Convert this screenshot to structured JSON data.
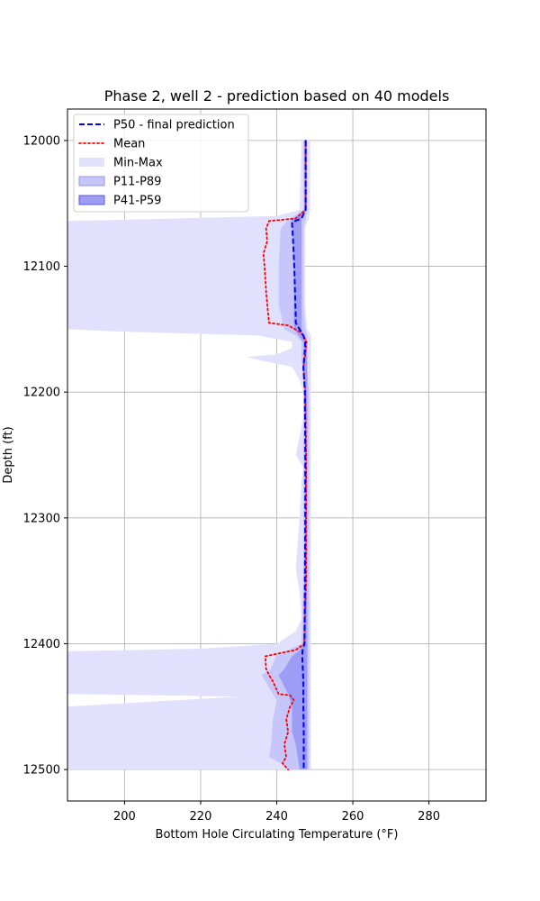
{
  "chart_data": {
    "type": "line",
    "title": "Phase 2, well 2 - prediction based on 40 models",
    "xlabel": "Bottom Hole Circulating Temperature (°F)",
    "ylabel": "Depth (ft)",
    "xlim": [
      185,
      295
    ],
    "ylim": [
      12525,
      11975
    ],
    "y_inverted": true,
    "grid": true,
    "legend_position": "upper-left",
    "xticks": [
      200,
      220,
      240,
      260,
      280
    ],
    "yticks": [
      12000,
      12100,
      12200,
      12300,
      12400,
      12500
    ],
    "xtick_labels": [
      "200",
      "220",
      "240",
      "260",
      "280"
    ],
    "ytick_labels": [
      "12000",
      "12100",
      "12200",
      "12300",
      "12400",
      "12500"
    ],
    "colors": {
      "p50": "#0000ff",
      "mean": "#ff0000",
      "minmax_fill": "#e1e1fd",
      "p11p89_fill": "#c6c6fa",
      "p41p59_fill": "#9d9df6",
      "legend_p11_edge": "#9696e8",
      "legend_p41_edge": "#5c5cd6"
    },
    "legend": [
      {
        "label": "P50 - final prediction",
        "style": "dashed-line",
        "color": "#0000ff"
      },
      {
        "label": "Mean",
        "style": "dotted-line",
        "color": "#ff0000"
      },
      {
        "label": "Min-Max",
        "style": "patch",
        "color": "#e1e1fd"
      },
      {
        "label": "P11-P89",
        "style": "patch",
        "color": "#c6c6fa"
      },
      {
        "label": "P41-P59",
        "style": "patch",
        "color": "#9d9df6"
      }
    ],
    "series": [
      {
        "name": "Min-Max",
        "kind": "band",
        "depth": [
          12000,
          12055,
          12060,
          12063,
          12064,
          12070,
          12100,
          12130,
          12150,
          12152,
          12155,
          12160,
          12165,
          12170,
          12172,
          12175,
          12180,
          12190,
          12200,
          12220,
          12250,
          12260,
          12270,
          12300,
          12320,
          12340,
          12360,
          12380,
          12390,
          12400,
          12404,
          12406,
          12410,
          12420,
          12440,
          12441,
          12442,
          12450,
          12451,
          12453,
          12455,
          12456,
          12460,
          12463,
          12465,
          12466,
          12468,
          12470,
          12472,
          12474,
          12476,
          12480,
          12490,
          12500
        ],
        "min": [
          246.5,
          246.0,
          240.0,
          200.0,
          185.0,
          185.0,
          185.0,
          185.0,
          185.0,
          200.0,
          235.0,
          244.0,
          244.0,
          240.0,
          232.0,
          236.0,
          244.0,
          246.0,
          247.0,
          247.0,
          245.0,
          247.0,
          246.5,
          246.0,
          245.5,
          245.0,
          246.0,
          246.5,
          245.0,
          240.0,
          220.0,
          185.0,
          185.0,
          185.0,
          185.0,
          209.0,
          230.0,
          185.0,
          185.0,
          185.0,
          185.0,
          185.0,
          185.0,
          185.0,
          185.0,
          185.0,
          185.0,
          185.0,
          185.0,
          185.0,
          185.0,
          185.0,
          185.0,
          185.0
        ],
        "max": [
          248.8,
          248.8,
          248.5,
          248.5,
          248.0,
          247.5,
          247.5,
          247.5,
          248.0,
          248.5,
          249.0,
          249.0,
          249.0,
          249.0,
          249.0,
          249.0,
          249.0,
          249.0,
          249.0,
          249.0,
          249.0,
          249.0,
          249.0,
          249.0,
          249.0,
          249.0,
          249.0,
          249.0,
          249.0,
          249.0,
          249.0,
          249.0,
          249.0,
          249.0,
          249.0,
          249.0,
          249.0,
          249.0,
          249.0,
          249.0,
          249.0,
          249.0,
          249.0,
          249.0,
          249.0,
          249.0,
          249.0,
          249.0,
          249.0,
          249.0,
          249.0,
          249.0,
          249.0,
          249.0
        ]
      },
      {
        "name": "P11-P89",
        "kind": "band",
        "depth": [
          12000,
          12055,
          12063,
          12070,
          12100,
          12130,
          12150,
          12155,
          12160,
          12175,
          12180,
          12200,
          12250,
          12300,
          12350,
          12400,
          12405,
          12408,
          12420,
          12425,
          12440,
          12445,
          12460,
          12480,
          12490,
          12495,
          12500
        ],
        "min": [
          247.0,
          247.0,
          243.0,
          241.0,
          240.5,
          240.5,
          242.0,
          245.0,
          246.5,
          246.5,
          247.0,
          247.0,
          247.0,
          247.0,
          247.0,
          246.5,
          243.0,
          240.0,
          238.5,
          236.0,
          239.0,
          240.0,
          239.0,
          238.5,
          238.0,
          241.0,
          243.0
        ],
        "max": [
          248.0,
          248.0,
          247.5,
          247.0,
          247.0,
          247.0,
          247.5,
          248.0,
          248.0,
          248.0,
          248.0,
          248.5,
          248.5,
          248.5,
          248.5,
          248.5,
          248.5,
          248.5,
          248.5,
          248.5,
          248.5,
          248.5,
          248.5,
          248.5,
          248.5,
          248.5,
          248.5
        ]
      },
      {
        "name": "P41-P59",
        "kind": "band",
        "depth": [
          12000,
          12055,
          12063,
          12100,
          12150,
          12160,
          12200,
          12300,
          12400,
          12405,
          12410,
          12420,
          12425,
          12440,
          12445,
          12450,
          12470,
          12480,
          12490,
          12500
        ],
        "min": [
          247.3,
          247.3,
          244.0,
          244.5,
          244.5,
          247.0,
          247.5,
          247.5,
          247.0,
          246.0,
          244.0,
          242.0,
          240.5,
          243.0,
          243.5,
          244.0,
          244.0,
          245.0,
          245.5,
          246.0
        ],
        "max": [
          247.9,
          247.9,
          246.5,
          246.5,
          246.5,
          248.0,
          248.0,
          248.0,
          248.0,
          248.0,
          248.0,
          248.0,
          248.0,
          248.0,
          248.0,
          248.0,
          248.0,
          248.0,
          248.0,
          248.0
        ]
      },
      {
        "name": "Mean",
        "kind": "line",
        "depth": [
          12000,
          12055,
          12062,
          12064,
          12070,
          12080,
          12090,
          12100,
          12110,
          12120,
          12130,
          12140,
          12145,
          12147,
          12152,
          12155,
          12160,
          12170,
          12180,
          12200,
          12250,
          12300,
          12350,
          12400,
          12405,
          12408,
          12410,
          12420,
          12425,
          12430,
          12440,
          12441,
          12445,
          12450,
          12460,
          12470,
          12480,
          12490,
          12495,
          12500
        ],
        "x": [
          247.6,
          247.6,
          245.0,
          238.0,
          237.2,
          237.5,
          236.5,
          236.8,
          237.0,
          237.2,
          237.5,
          237.8,
          238.0,
          243.0,
          246.0,
          247.0,
          247.8,
          247.5,
          247.0,
          247.5,
          247.7,
          247.7,
          247.7,
          247.2,
          245.0,
          240.0,
          237.0,
          237.2,
          238.0,
          239.0,
          240.5,
          243.5,
          244.5,
          243.5,
          242.5,
          243.0,
          242.0,
          242.5,
          241.5,
          243.0
        ]
      },
      {
        "name": "P50 - final prediction",
        "kind": "line",
        "depth": [
          12000,
          12055,
          12062,
          12065,
          12080,
          12100,
          12120,
          12140,
          12145,
          12150,
          12155,
          12160,
          12170,
          12180,
          12200,
          12250,
          12300,
          12350,
          12400,
          12405,
          12410,
          12430,
          12450,
          12470,
          12500
        ],
        "x": [
          247.6,
          247.6,
          246.5,
          244.0,
          244.3,
          244.6,
          244.8,
          245.0,
          245.0,
          246.0,
          247.0,
          247.5,
          247.3,
          247.0,
          247.4,
          247.5,
          247.5,
          247.4,
          247.3,
          246.8,
          246.7,
          247.0,
          247.0,
          247.1,
          247.1
        ]
      }
    ]
  }
}
